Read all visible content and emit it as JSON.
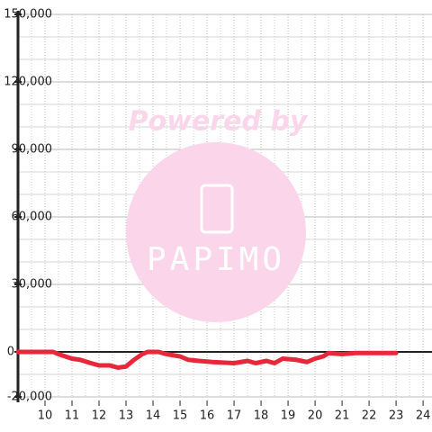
{
  "chart_data": {
    "type": "line",
    "x": [
      9,
      10.3,
      10.5,
      11,
      11.3,
      11.7,
      12,
      12.4,
      12.7,
      13,
      13.3,
      13.6,
      13.8,
      14.2,
      14.5,
      15,
      15.3,
      15.7,
      16.2,
      17,
      17.5,
      17.8,
      18.2,
      18.5,
      18.8,
      19.3,
      19.7,
      20,
      20.3,
      20.5,
      21,
      21.5,
      23
    ],
    "series": [
      {
        "color": "#e8283a",
        "values": [
          0,
          0,
          -1000,
          -3000,
          -3500,
          -5000,
          -6000,
          -6000,
          -7000,
          -6500,
          -3500,
          -1000,
          0,
          0,
          -1000,
          -2000,
          -3500,
          -4000,
          -4500,
          -5000,
          -4000,
          -5000,
          -4000,
          -5000,
          -3000,
          -3500,
          -4500,
          -3000,
          -2000,
          -500,
          -1000,
          -500,
          -500
        ]
      }
    ],
    "xlim": [
      9,
      24.33
    ],
    "xticks": [
      10,
      11,
      12,
      13,
      14,
      15,
      16,
      17,
      18,
      19,
      20,
      21,
      22,
      23,
      24
    ],
    "x_minor_ticks": [
      9.5,
      10.5,
      11.5,
      12.5,
      13.5,
      14.5,
      15.5,
      16.5,
      17.5,
      18.5,
      19.5,
      20.5,
      21.5,
      22.5,
      23.5
    ],
    "ylim": [
      -20000,
      150000
    ],
    "yticks": [
      {
        "value": -20000,
        "label": "-20,000"
      },
      0,
      {
        "value": 30000,
        "label": "30,000"
      },
      {
        "value": 60000,
        "label": "60,000"
      },
      {
        "value": 90000,
        "label": "90,000"
      },
      {
        "value": 120000,
        "label": "120,000"
      },
      {
        "value": 150000,
        "label": "150,000"
      }
    ],
    "y_minor_ticks": [
      -10000,
      10000,
      20000,
      40000,
      50000,
      70000,
      80000,
      100000,
      110000,
      130000,
      140000
    ],
    "grid": true,
    "watermark": {
      "line1": "Powered by",
      "line2": "PAPIMO"
    }
  }
}
